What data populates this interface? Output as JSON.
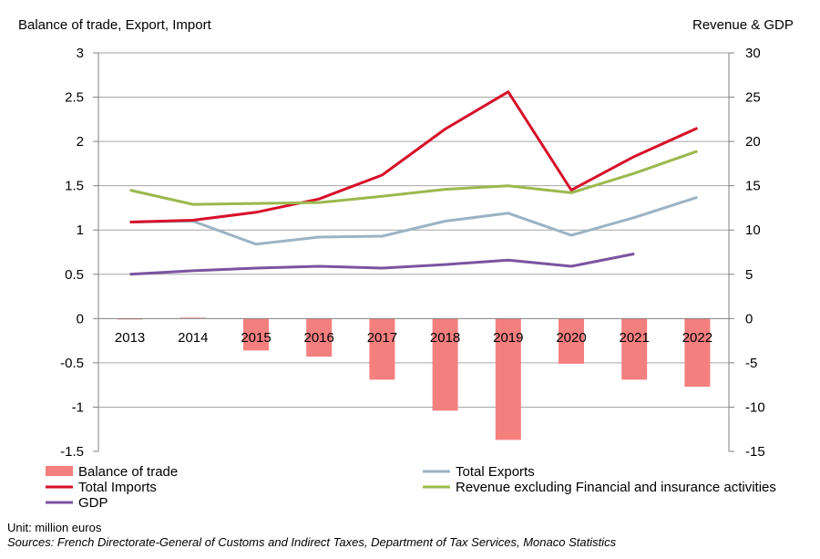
{
  "chart_data": {
    "type": "bar+line",
    "title": "",
    "y_left_label": "Balance of trade, Export, Import",
    "y_right_label": "Revenue & GDP",
    "categories": [
      "2013",
      "2014",
      "2015",
      "2016",
      "2017",
      "2018",
      "2019",
      "2020",
      "2021",
      "2022"
    ],
    "y_left_range": [
      -1.5,
      3
    ],
    "y_left_ticks": [
      "3",
      "2.5",
      "2",
      "1.5",
      "1",
      "0.5",
      "0",
      "-0.5",
      "-1",
      "-1.5"
    ],
    "y_left_tick_values": [
      3,
      2.5,
      2,
      1.5,
      1,
      0.5,
      0,
      -0.5,
      -1,
      -1.5
    ],
    "y_right_range": [
      -15,
      30
    ],
    "y_right_ticks": [
      "30",
      "25",
      "20",
      "15",
      "10",
      "5",
      "0",
      "-5",
      "-10",
      "-15"
    ],
    "y_right_tick_values": [
      30,
      25,
      20,
      15,
      10,
      5,
      0,
      -5,
      -10,
      -15
    ],
    "grid": true,
    "series": [
      {
        "name": "Balance of trade",
        "kind": "bar",
        "axis": "left",
        "color": "#f47f7f",
        "values": [
          -0.005,
          0.01,
          -0.36,
          -0.43,
          -0.69,
          -1.04,
          -1.37,
          -0.51,
          -0.69,
          -0.77
        ]
      },
      {
        "name": "Total Exports",
        "kind": "line",
        "axis": "left",
        "color": "#9bb3c4",
        "values": [
          1.09,
          1.1,
          0.84,
          0.92,
          0.93,
          1.1,
          1.19,
          0.94,
          1.14,
          1.37
        ]
      },
      {
        "name": "Total Imports",
        "kind": "line",
        "axis": "left",
        "color": "#d7102a",
        "values": [
          1.09,
          1.11,
          1.2,
          1.35,
          1.62,
          2.14,
          2.56,
          1.45,
          1.83,
          2.15
        ]
      },
      {
        "name": "Revenue excluding Financial and insurance activities",
        "kind": "line",
        "axis": "right",
        "color": "#9ab94e",
        "values": [
          14.5,
          12.9,
          13.0,
          13.1,
          13.8,
          14.6,
          15.0,
          14.2,
          16.4,
          18.9
        ]
      },
      {
        "name": "GDP",
        "kind": "line",
        "axis": "right",
        "color": "#7b54a0",
        "values": [
          5.0,
          5.4,
          5.7,
          5.9,
          5.7,
          6.1,
          6.6,
          5.9,
          7.3,
          null
        ]
      }
    ],
    "legend": "bottom"
  },
  "footer": {
    "unit": "Unit: million euros",
    "sources": "Sources: French Directorate-General of Customs and Indirect Taxes, Department of Tax Services, Monaco Statistics"
  }
}
